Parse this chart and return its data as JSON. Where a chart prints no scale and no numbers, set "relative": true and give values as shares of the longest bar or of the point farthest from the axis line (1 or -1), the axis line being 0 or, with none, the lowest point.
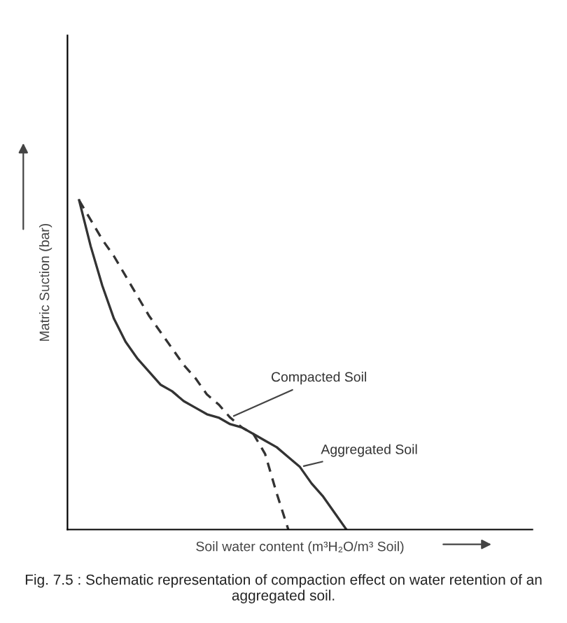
{
  "chart_data": {
    "type": "line",
    "relative": true,
    "xlabel": "Soil water content (m³H₂O/m³ Soil)",
    "ylabel": "Matric Suction (bar)",
    "legend": false,
    "marker": "none",
    "categories": [
      null,
      null,
      null,
      null,
      null,
      null,
      null,
      null,
      null,
      null,
      null,
      null,
      null,
      null,
      null,
      null,
      null,
      null,
      null,
      null,
      null,
      null,
      null,
      null,
      null,
      null,
      null,
      null,
      null,
      null,
      null,
      null,
      null,
      null,
      null,
      null,
      null,
      null,
      null,
      null
    ],
    "series": [
      {
        "name": "Compacted Soil",
        "color": "#333333",
        "line_style": "dashed",
        "values": [
          1.0,
          0.94,
          0.88,
          0.83,
          0.77,
          0.71,
          0.65,
          0.6,
          0.55,
          0.5,
          0.46,
          0.41,
          0.38,
          0.34,
          0.31,
          0.29,
          0.23,
          0.11,
          0,
          null,
          null,
          null,
          null,
          null,
          null,
          null,
          null,
          null,
          null,
          null,
          null,
          null,
          null,
          null,
          null,
          null,
          null,
          null,
          null,
          null
        ]
      },
      {
        "name": "Aggregated Soil",
        "color": "#333333",
        "line_style": "solid",
        "values": [
          1.0,
          0.86,
          0.74,
          0.64,
          0.57,
          0.52,
          0.48,
          0.44,
          0.42,
          0.39,
          0.37,
          0.35,
          0.34,
          0.32,
          0.31,
          0.29,
          0.27,
          0.25,
          0.22,
          0.19,
          0.14,
          0.1,
          0.05,
          0,
          null,
          null,
          null,
          null,
          null,
          null,
          null,
          null,
          null,
          null,
          null,
          null,
          null,
          null,
          null,
          null
        ]
      }
    ],
    "annotations": [
      "Fig. 7.5 : Schematic representation of compaction effect on water retention of an aggregated soil."
    ]
  }
}
